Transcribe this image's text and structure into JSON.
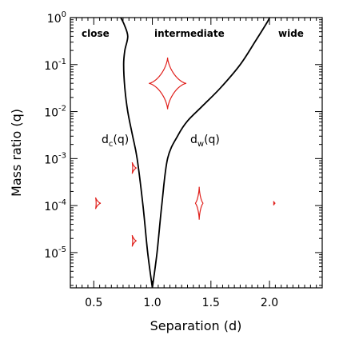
{
  "chart_data": {
    "type": "line",
    "xlabel": "Separation (d)",
    "ylabel": "Mass ratio (q)",
    "xlim": [
      0.3,
      2.45
    ],
    "ylim_log10": [
      -5.75,
      0
    ],
    "y_scale": "log",
    "x_ticks": [
      "0.5",
      "1.0",
      "1.5",
      "2.0"
    ],
    "x_tick_values": [
      0.5,
      1.0,
      1.5,
      2.0
    ],
    "y_ticks": [
      {
        "base": "10",
        "exp": "0"
      },
      {
        "base": "10",
        "exp": "-1"
      },
      {
        "base": "10",
        "exp": "-2"
      },
      {
        "base": "10",
        "exp": "-3"
      },
      {
        "base": "10",
        "exp": "-4"
      },
      {
        "base": "10",
        "exp": "-5"
      }
    ],
    "y_tick_exponents": [
      0,
      -1,
      -2,
      -3,
      -4,
      -5
    ],
    "regions": {
      "close": "close",
      "intermediate": "intermediate",
      "wide": "wide"
    },
    "curve_labels": {
      "dc": {
        "main": "d",
        "sub": "c",
        "arg": "(q)"
      },
      "dw": {
        "main": "d",
        "sub": "w",
        "arg": "(q)"
      }
    },
    "series": [
      {
        "key": "dc",
        "color": "#000000",
        "d": [
          1.0,
          0.96,
          0.92,
          0.87,
          0.83,
          0.79,
          0.765,
          0.755,
          0.765,
          0.79,
          0.76,
          0.73
        ],
        "log10_q": [
          -5.75,
          -5.0,
          -4.0,
          -3.0,
          -2.5,
          -2.0,
          -1.5,
          -1.0,
          -0.7,
          -0.4,
          -0.15,
          0.0
        ]
      },
      {
        "key": "dw",
        "color": "#000000",
        "d": [
          1.0,
          1.04,
          1.08,
          1.13,
          1.22,
          1.3,
          1.42,
          1.58,
          1.75,
          1.88,
          1.98,
          2.0
        ],
        "log10_q": [
          -5.75,
          -5.0,
          -4.0,
          -3.0,
          -2.5,
          -2.2,
          -1.9,
          -1.5,
          -1.0,
          -0.5,
          -0.1,
          0.0
        ]
      }
    ],
    "caustics": [
      {
        "cx": 1.13,
        "log10_q": -1.4,
        "w": 0.32,
        "h": 1.1,
        "cusps": 4
      },
      {
        "cx": 1.4,
        "log10_q": -3.95,
        "w": 0.07,
        "h": 0.7,
        "cusps": 4
      },
      {
        "cx": 2.04,
        "log10_q": -3.95,
        "w": 0.02,
        "h": 0.1,
        "cusps": 3
      },
      {
        "cx": 0.53,
        "log10_q": -3.95,
        "w": 0.06,
        "h": 0.28,
        "cusps": 3
      },
      {
        "cx": 0.84,
        "log10_q": -3.2,
        "w": 0.05,
        "h": 0.28,
        "cusps": 3
      },
      {
        "cx": 0.84,
        "log10_q": -4.75,
        "w": 0.05,
        "h": 0.28,
        "cusps": 3
      }
    ],
    "caustic_color": "#e0201c",
    "grid": false,
    "legend": "none"
  }
}
